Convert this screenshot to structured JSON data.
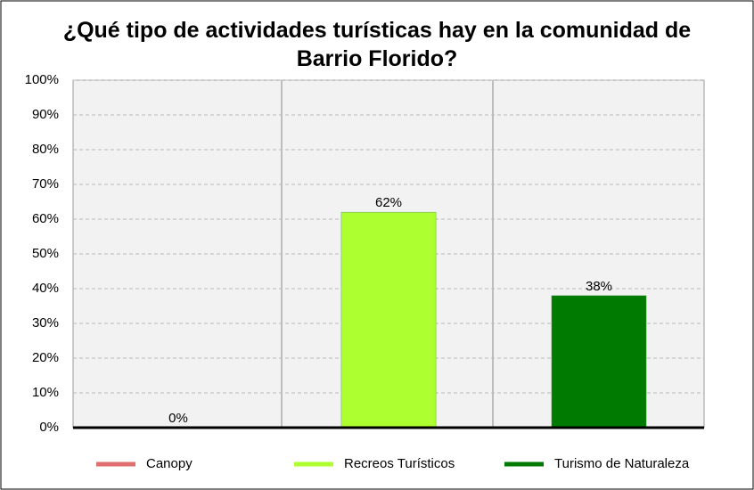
{
  "chart_data": {
    "type": "bar",
    "title": "¿Qué tipo de actividades turísticas hay en la comunidad de Barrio Florido?",
    "series": [
      {
        "name": "Canopy",
        "color": "#e07070",
        "values": [
          0
        ],
        "value_labels": [
          "0%"
        ]
      },
      {
        "name": "Recreos Turísticos",
        "color": "#adff2f",
        "values": [
          62
        ],
        "value_labels": [
          "62%"
        ]
      },
      {
        "name": "Turismo de Naturaleza",
        "color": "#007a00",
        "values": [
          38
        ],
        "value_labels": [
          "38%"
        ]
      }
    ],
    "ylim": [
      0,
      100
    ],
    "yticks": [
      {
        "value": 0,
        "label": "0%"
      },
      {
        "value": 10,
        "label": "10%"
      },
      {
        "value": 20,
        "label": "20%"
      },
      {
        "value": 30,
        "label": "30%"
      },
      {
        "value": 40,
        "label": "40%"
      },
      {
        "value": 50,
        "label": "50%"
      },
      {
        "value": 60,
        "label": "60%"
      },
      {
        "value": 70,
        "label": "70%"
      },
      {
        "value": 80,
        "label": "80%"
      },
      {
        "value": 90,
        "label": "90%"
      },
      {
        "value": 100,
        "label": "100%"
      }
    ],
    "grid": true,
    "legend": "bottom"
  }
}
